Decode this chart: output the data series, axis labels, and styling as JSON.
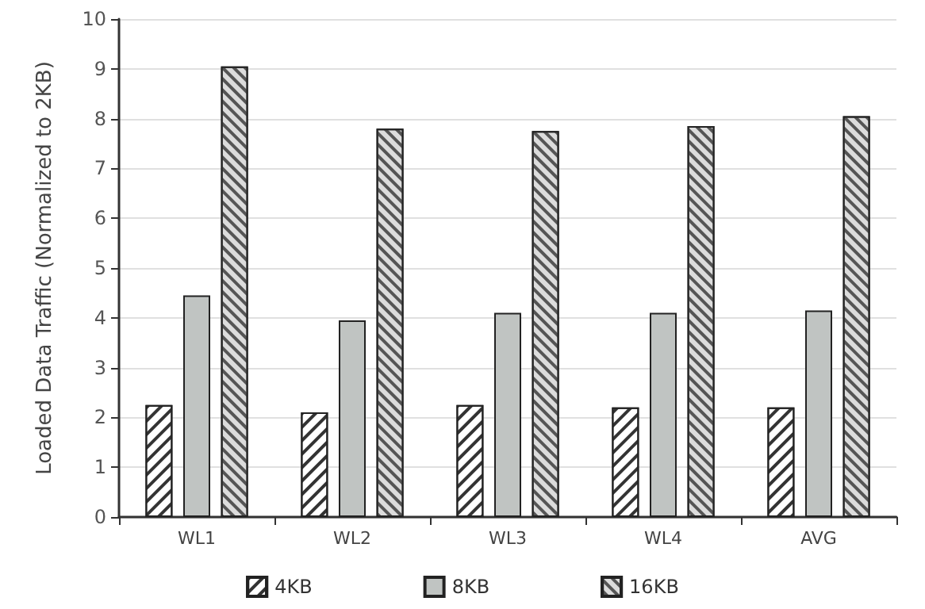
{
  "chart_data": {
    "type": "bar",
    "ylabel": "Loaded Data Traffic (Normalized to 2KB)",
    "categories": [
      "WL1",
      "WL2",
      "WL3",
      "WL4",
      "AVG"
    ],
    "series": [
      {
        "name": "4KB",
        "color": "#ffffff",
        "values": [
          2.25,
          2.1,
          2.25,
          2.2,
          2.2
        ]
      },
      {
        "name": "8KB",
        "color": "#c0c4c2",
        "values": [
          4.45,
          3.95,
          4.1,
          4.1,
          4.15
        ]
      },
      {
        "name": "16KB",
        "color": "#dcdcdc",
        "values": [
          9.05,
          7.8,
          7.75,
          7.85,
          8.05
        ]
      }
    ],
    "ylim": [
      0,
      10
    ],
    "yticks": [
      0,
      1,
      2,
      3,
      4,
      5,
      6,
      7,
      8,
      9,
      10
    ],
    "grid": "y",
    "legend": "bottom"
  }
}
